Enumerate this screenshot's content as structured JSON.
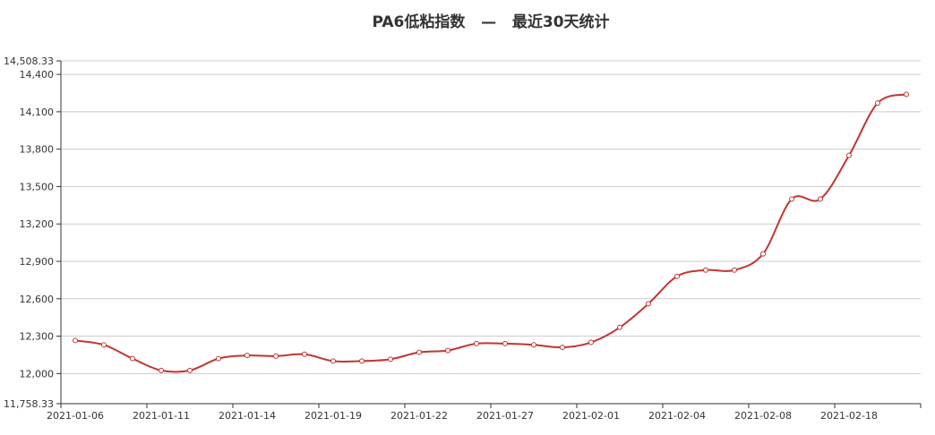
{
  "chart_data": {
    "type": "line",
    "title": "PA6低粘指数   —   最近30天统计",
    "xlabel": "",
    "ylabel": "",
    "ylim": [
      11758.33,
      14508.33
    ],
    "y_ticks": [
      11758.33,
      12000,
      12300,
      12600,
      12900,
      13200,
      13500,
      13800,
      14100,
      14400,
      14508.33
    ],
    "y_tick_labels": [
      "11,758.33",
      "12,000",
      "12,300",
      "12,600",
      "12,900",
      "13,200",
      "13,500",
      "13,800",
      "14,100",
      "14,400",
      "14,508.33"
    ],
    "x_tick_labels": [
      "2021-01-06",
      "2021-01-11",
      "2021-01-14",
      "2021-01-19",
      "2021-01-22",
      "2021-01-27",
      "2021-02-01",
      "2021-02-04",
      "2021-02-08",
      "2021-02-18"
    ],
    "grid": true,
    "line_color": "#c23531",
    "values": [
      12265,
      12230,
      12120,
      12025,
      12025,
      12120,
      12145,
      12140,
      12155,
      12100,
      12100,
      12115,
      12170,
      12185,
      12240,
      12240,
      12230,
      12210,
      12250,
      12370,
      12560,
      12780,
      12830,
      12830,
      12960,
      13400,
      13400,
      13750,
      14170,
      14240
    ]
  }
}
